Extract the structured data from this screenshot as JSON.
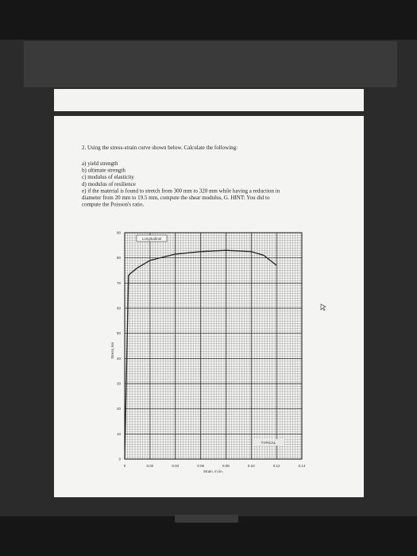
{
  "document": {
    "question": "2. Using the stress-strain curve shown below. Calculate the following:",
    "items": [
      [
        "a) yield strength"
      ],
      [
        "b) ultimate strength"
      ],
      [
        "c) modulus of elasticity"
      ],
      [
        "d) modulus of resilience"
      ],
      [
        "e) if the material is found to stretch from 300 mm to 320 mm while having a reduction in",
        "diameter from 20 mm to 19.5 mm, compute the shear modulus, G.  HINT: You did to",
        "compute the Poisson's ratio."
      ]
    ]
  },
  "chart_data": {
    "type": "line",
    "xlabel": "Strain, in./in.",
    "ylabel": "Stress, ksi",
    "annotations": [
      "Longitudinal",
      "TYPICAL"
    ],
    "xlim": [
      0,
      0.14
    ],
    "ylim": [
      0,
      90
    ],
    "xticks": [
      0,
      0.02,
      0.04,
      0.06,
      0.08,
      {
        "value": 0.1,
        "label": "0.10"
      },
      0.12,
      0.14
    ],
    "yticks": [
      0,
      10,
      20,
      30,
      40,
      50,
      60,
      70,
      80,
      90
    ],
    "grid": true,
    "series": [
      {
        "name": "Longitudinal",
        "color": "#222222",
        "x": [
          0,
          0.003,
          0.005,
          0.01,
          0.02,
          0.04,
          0.06,
          0.08,
          0.1,
          0.11,
          0.12
        ],
        "values": [
          0,
          73,
          74,
          76,
          79,
          81.5,
          82.5,
          83,
          82.5,
          81,
          77
        ]
      }
    ]
  }
}
